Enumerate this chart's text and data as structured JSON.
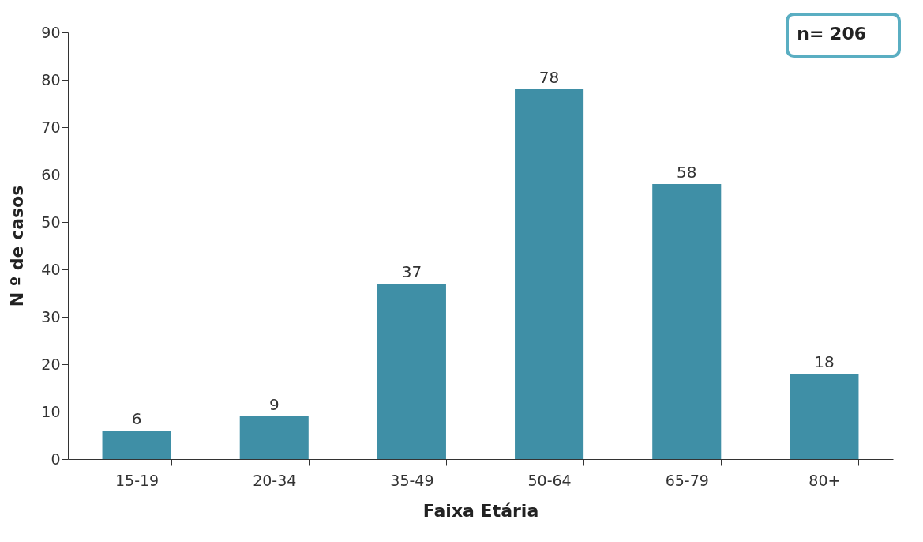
{
  "chart_data": {
    "type": "bar",
    "xlabel": "Faixa Etária",
    "ylabel": "N º de casos",
    "categories": [
      "15-19",
      "20-34",
      "35-49",
      "50-64",
      "65-79",
      "80+"
    ],
    "values": [
      6,
      9,
      37,
      78,
      58,
      18
    ],
    "color": "#3f8fa6",
    "ylim": [
      0,
      90
    ],
    "yticks": [
      0,
      10,
      20,
      30,
      40,
      50,
      60,
      70,
      80,
      90
    ],
    "grid": false,
    "data_labels": true,
    "annotations": [
      "n= 206"
    ]
  }
}
